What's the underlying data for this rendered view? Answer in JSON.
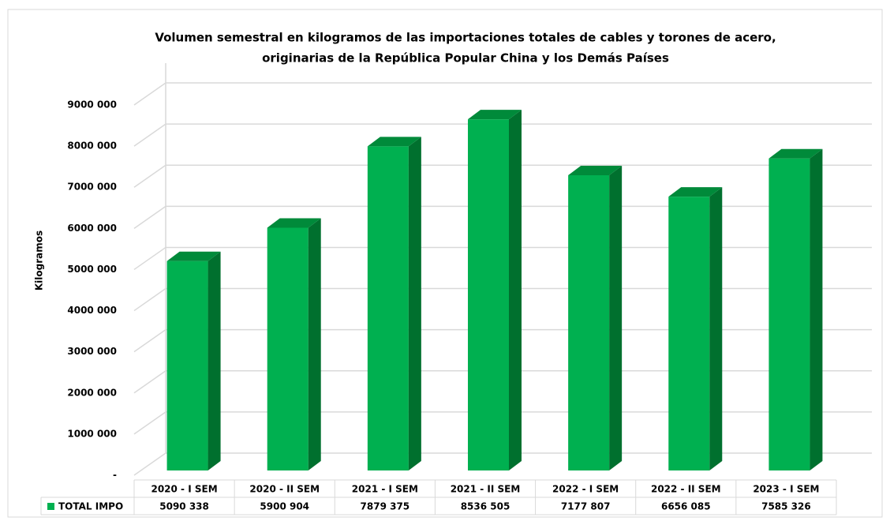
{
  "chart_data": {
    "type": "bar3d",
    "title": [
      "Volumen semestral en kilogramos de las importaciones totales de cables y torones de acero,",
      "originarias de la República Popular China y los Demás Países"
    ],
    "y_label": "Kilogramos",
    "categories": [
      "2020 - I SEM",
      "2020 - II SEM",
      "2021 - I SEM",
      "2021 - II SEM",
      "2022 - I SEM",
      "2022 - II SEM",
      "2023 - I SEM"
    ],
    "series": [
      {
        "name": "TOTAL IMPO",
        "color": "#00b050",
        "values": [
          5090338,
          5900904,
          7879375,
          8536505,
          7177807,
          6656085,
          7585326
        ],
        "value_labels": [
          "5090 338",
          "5900 904",
          "7879 375",
          "8536 505",
          "7177 807",
          "6656 085",
          "7585 326"
        ]
      }
    ],
    "ylim": [
      0,
      9000000
    ],
    "yticks": [
      {
        "value": 0,
        "label": "-"
      },
      {
        "value": 1000000,
        "label": "1000 000"
      },
      {
        "value": 2000000,
        "label": "2000 000"
      },
      {
        "value": 3000000,
        "label": "3000 000"
      },
      {
        "value": 4000000,
        "label": "4000 000"
      },
      {
        "value": 5000000,
        "label": "5000 000"
      },
      {
        "value": 6000000,
        "label": "6000 000"
      },
      {
        "value": 7000000,
        "label": "7000 000"
      },
      {
        "value": 8000000,
        "label": "8000 000"
      },
      {
        "value": 9000000,
        "label": "9000 000"
      }
    ],
    "grid": true
  }
}
